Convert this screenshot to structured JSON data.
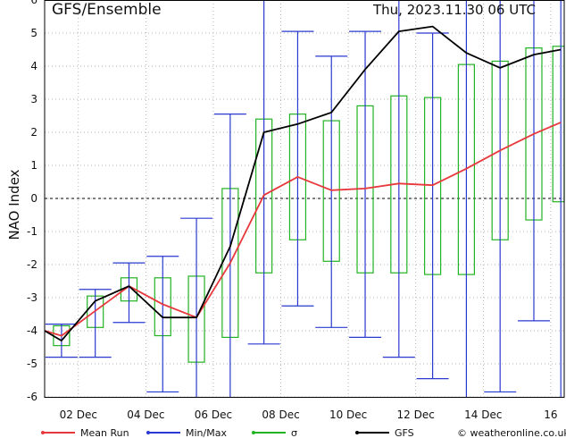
{
  "chart_data": {
    "type": "line",
    "title": "GFS/Ensemble",
    "date": "Thu, 2023.11.30 06 UTC",
    "ylabel": "NAO Index",
    "ylim": [
      -6,
      6
    ],
    "yticks": [
      -6,
      -5,
      -4,
      -3,
      -2,
      -1,
      0,
      1,
      2,
      3,
      4,
      5,
      6
    ],
    "xticks": [
      {
        "x": 2,
        "label": "02 Dec"
      },
      {
        "x": 4,
        "label": "04 Dec"
      },
      {
        "x": 6,
        "label": "06 Dec"
      },
      {
        "x": 8,
        "label": "08 Dec"
      },
      {
        "x": 10,
        "label": "10 Dec"
      },
      {
        "x": 12,
        "label": "12 Dec"
      },
      {
        "x": 14,
        "label": "14 Dec"
      },
      {
        "x": 16,
        "label": "16"
      }
    ],
    "x": [
      1,
      1.5,
      2.5,
      3.5,
      4.5,
      5.5,
      6.5,
      7.5,
      8.5,
      9.5,
      10.5,
      11.5,
      12.5,
      13.5,
      14.5,
      15.5,
      16.3
    ],
    "series": [
      {
        "name": "Mean Run",
        "color": "#e8383c",
        "values": [
          -4.0,
          -4.15,
          -3.4,
          -2.65,
          -3.2,
          -3.6,
          -1.95,
          0.1,
          0.65,
          0.25,
          0.3,
          0.45,
          0.4,
          0.9,
          1.45,
          1.95,
          2.3
        ]
      },
      {
        "name": "GFS",
        "color": "#000000",
        "values": [
          -4.0,
          -4.3,
          -3.1,
          -2.65,
          -3.6,
          -3.6,
          -1.45,
          2.0,
          2.25,
          2.6,
          3.9,
          5.05,
          5.2,
          4.4,
          3.95,
          4.35,
          4.5
        ]
      }
    ],
    "minmax": {
      "name": "Min/Max",
      "color": "#2a39d1",
      "x": [
        1.5,
        2.5,
        3.5,
        4.5,
        5.5,
        6.5,
        7.5,
        8.5,
        9.5,
        10.5,
        11.5,
        12.5,
        13.5,
        14.5,
        15.5,
        16.3
      ],
      "min": [
        -4.8,
        -4.8,
        -3.75,
        -5.85,
        -6.0,
        -6.0,
        -4.4,
        -3.25,
        -3.9,
        -4.2,
        -4.8,
        -5.45,
        -6.0,
        -5.85,
        -3.7,
        -6.0
      ],
      "max": [
        -3.8,
        -2.75,
        -1.95,
        -1.75,
        -0.6,
        2.55,
        6.0,
        5.05,
        4.3,
        5.05,
        6.0,
        5.0,
        6.0,
        6.0,
        6.0,
        6.0
      ]
    },
    "sigma": {
      "name": "σ",
      "color": "#22b322",
      "x": [
        1.5,
        2.5,
        3.5,
        4.5,
        5.5,
        6.5,
        7.5,
        8.5,
        9.5,
        10.5,
        11.5,
        12.5,
        13.5,
        14.5,
        15.5,
        16.3
      ],
      "low": [
        -4.45,
        -3.9,
        -3.1,
        -4.15,
        -4.95,
        -4.2,
        -2.25,
        -1.25,
        -1.9,
        -2.25,
        -2.25,
        -2.3,
        -2.3,
        -1.25,
        -0.65,
        -0.1
      ],
      "high": [
        -3.85,
        -2.95,
        -2.4,
        -2.4,
        -2.35,
        0.3,
        2.4,
        2.55,
        2.35,
        2.8,
        3.1,
        3.05,
        4.05,
        4.15,
        4.55,
        4.6
      ]
    },
    "legend": [
      {
        "label": "Mean Run",
        "color": "#e8383c"
      },
      {
        "label": "Min/Max",
        "color": "#2a39d1"
      },
      {
        "label": "σ",
        "color": "#22b322"
      },
      {
        "label": "GFS",
        "color": "#000000"
      }
    ],
    "source": "© weatheronline.co.uk",
    "grid": true,
    "zero_line": "dashed"
  }
}
